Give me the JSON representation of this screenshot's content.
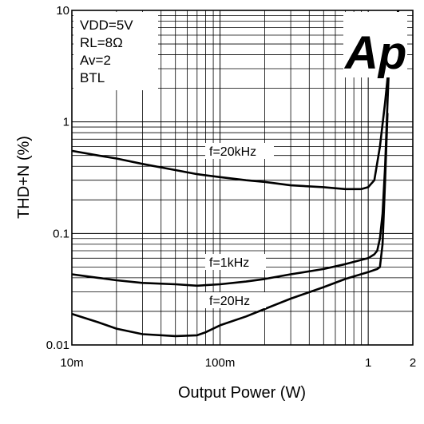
{
  "chart_data": {
    "type": "line",
    "xlabel": "Output Power (W)",
    "ylabel": "THD+N (%)",
    "x_scale": "log",
    "y_scale": "log",
    "xlim": [
      0.01,
      2
    ],
    "ylim": [
      0.01,
      10
    ],
    "grid": true,
    "x_ticks": [
      {
        "value": 0.01,
        "label": "10m"
      },
      {
        "value": 0.1,
        "label": "100m"
      },
      {
        "value": 1,
        "label": "1"
      },
      {
        "value": 2,
        "label": "2"
      }
    ],
    "y_ticks": [
      {
        "value": 0.01,
        "label": "0.01"
      },
      {
        "value": 0.1,
        "label": "0.1"
      },
      {
        "value": 1,
        "label": "1"
      },
      {
        "value": 10,
        "label": "10"
      }
    ],
    "conditions": [
      "VDD=5V",
      "RL=8Ω",
      "Av=2",
      "BTL"
    ],
    "logo": "Ap",
    "series": [
      {
        "name": "f=20kHz",
        "x": [
          0.01,
          0.015,
          0.02,
          0.03,
          0.05,
          0.07,
          0.1,
          0.15,
          0.2,
          0.3,
          0.5,
          0.7,
          0.9,
          1.0,
          1.1,
          1.2,
          1.3,
          1.4,
          1.5,
          1.6
        ],
        "y": [
          0.55,
          0.5,
          0.47,
          0.42,
          0.37,
          0.34,
          0.32,
          0.3,
          0.29,
          0.27,
          0.26,
          0.25,
          0.25,
          0.26,
          0.3,
          0.6,
          1.5,
          4,
          8,
          12
        ]
      },
      {
        "name": "f=1kHz",
        "x": [
          0.01,
          0.015,
          0.02,
          0.03,
          0.05,
          0.07,
          0.1,
          0.15,
          0.2,
          0.3,
          0.5,
          0.7,
          1.0,
          1.1,
          1.15,
          1.2,
          1.25,
          1.3,
          1.35,
          1.4
        ],
        "y": [
          0.043,
          0.04,
          0.038,
          0.036,
          0.035,
          0.034,
          0.035,
          0.037,
          0.039,
          0.043,
          0.048,
          0.053,
          0.06,
          0.065,
          0.07,
          0.09,
          0.15,
          0.4,
          1.5,
          5
        ]
      },
      {
        "name": "f=20Hz",
        "x": [
          0.01,
          0.015,
          0.02,
          0.03,
          0.05,
          0.07,
          0.08,
          0.1,
          0.15,
          0.2,
          0.3,
          0.5,
          0.7,
          1.0,
          1.1,
          1.15,
          1.2,
          1.25,
          1.3,
          1.35
        ],
        "y": [
          0.019,
          0.016,
          0.014,
          0.0125,
          0.012,
          0.0122,
          0.013,
          0.015,
          0.018,
          0.021,
          0.026,
          0.033,
          0.039,
          0.045,
          0.047,
          0.048,
          0.05,
          0.08,
          0.3,
          1.2
        ]
      }
    ]
  }
}
